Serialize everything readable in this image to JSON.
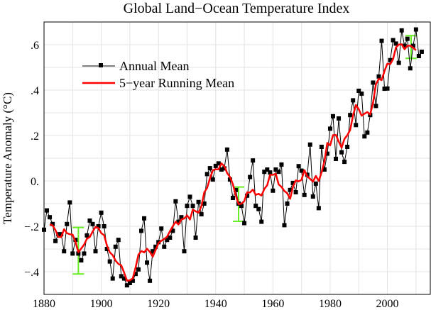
{
  "chart_data": {
    "type": "line",
    "title": "Global Land−Ocean Temperature Index",
    "xlabel": "",
    "ylabel": "Temperature Anomaly (°C)",
    "xlim": [
      1880,
      2015
    ],
    "ylim": [
      -0.5,
      0.7
    ],
    "x_ticks": [
      1880,
      1900,
      1920,
      1940,
      1960,
      1980,
      2000
    ],
    "x_tick_labels": [
      "1880",
      "1900",
      "1920",
      "1940",
      "1960",
      "1980",
      "2000"
    ],
    "y_ticks": [
      -0.4,
      -0.2,
      0,
      0.2,
      0.4,
      0.6
    ],
    "y_tick_labels": [
      "−.4",
      "−.2",
      "0.",
      ".2",
      ".4",
      ".6"
    ],
    "grid": true,
    "legend_position": "top-left",
    "series": [
      {
        "name": "Annual Mean",
        "color": "#000000",
        "marker": "square",
        "x_start": 1880,
        "values": [
          -0.215,
          -0.13,
          -0.16,
          -0.19,
          -0.265,
          -0.235,
          -0.235,
          -0.31,
          -0.19,
          -0.095,
          -0.32,
          -0.26,
          -0.32,
          -0.35,
          -0.32,
          -0.24,
          -0.175,
          -0.19,
          -0.31,
          -0.2,
          -0.14,
          -0.2,
          -0.3,
          -0.355,
          -0.43,
          -0.29,
          -0.26,
          -0.42,
          -0.43,
          -0.46,
          -0.45,
          -0.44,
          -0.41,
          -0.39,
          -0.22,
          -0.165,
          -0.36,
          -0.44,
          -0.31,
          -0.29,
          -0.27,
          -0.21,
          -0.29,
          -0.26,
          -0.25,
          -0.22,
          -0.09,
          -0.18,
          -0.16,
          -0.31,
          -0.11,
          -0.07,
          -0.11,
          -0.25,
          -0.093,
          -0.147,
          -0.1,
          0.03,
          0.056,
          0.006,
          0.066,
          0.077,
          0.05,
          0.055,
          0.138,
          0.006,
          -0.075,
          -0.04,
          -0.1,
          -0.11,
          -0.186,
          -0.065,
          0.017,
          0.09,
          -0.11,
          -0.124,
          -0.18,
          0.04,
          0.05,
          0.037,
          -0.043,
          0.05,
          0.04,
          0.072,
          -0.195,
          -0.1,
          -0.04,
          -0.009,
          -0.05,
          0.065,
          0.045,
          -0.062,
          0.027,
          0.16,
          -0.069,
          -0.012,
          -0.12,
          0.15,
          0.05,
          0.12,
          0.23,
          0.285,
          0.097,
          0.275,
          0.126,
          0.084,
          0.15,
          0.29,
          0.355,
          0.246,
          0.397,
          0.384,
          0.196,
          0.213,
          0.29,
          0.433,
          0.33,
          0.46,
          0.617,
          0.406,
          0.407,
          0.532,
          0.62,
          0.605,
          0.52,
          0.663,
          0.595,
          0.626,
          0.496,
          0.595,
          0.667,
          0.55,
          0.569
        ]
      },
      {
        "name": "5−year Running Mean",
        "color": "#ff0000",
        "window": 5
      }
    ],
    "uncertainty_bars": {
      "color": "#66ee22",
      "bars": [
        {
          "x": 1892,
          "low": -0.41,
          "high": -0.205
        },
        {
          "x": 1948,
          "low": -0.178,
          "high": -0.027
        },
        {
          "x": 2008.3,
          "low": 0.54,
          "high": 0.64
        }
      ]
    }
  }
}
